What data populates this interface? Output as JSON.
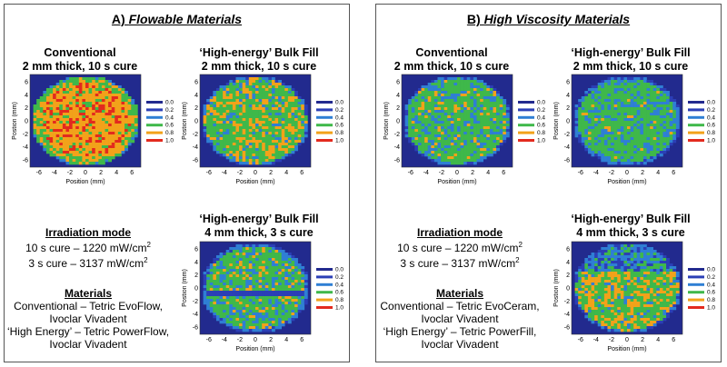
{
  "legend": {
    "labels": [
      "0.0",
      "0.2",
      "0.4",
      "0.6",
      "0.8",
      "1.0"
    ],
    "colors": [
      "#222a8e",
      "#2b3fb6",
      "#2f7fd4",
      "#3fb84a",
      "#f2a21a",
      "#e32a1e"
    ]
  },
  "axes": {
    "xlabel": "Position (mm)",
    "ylabel": "Postion (mm)",
    "ticks": [
      "-6",
      "-4",
      "-2",
      "0",
      "2",
      "4",
      "6"
    ],
    "yticks": [
      "6",
      "4",
      "2",
      "0",
      "-2",
      "-4",
      "-6"
    ]
  },
  "panel_a": {
    "title_prefix": "A) ",
    "title_italic": "Flowable Materials",
    "conventional_title_1": "Conventional",
    "conventional_title_2": "2 mm thick, 10 s cure",
    "bulk2_title_1": "‘High-energy’ Bulk Fill",
    "bulk2_title_2": "2 mm thick, 10 s cure",
    "bulk4_title_1": "‘High-energy’ Bulk Fill",
    "bulk4_title_2": "4 mm thick, 3 s cure",
    "irr_heading": "Irradiation mode",
    "irr_line1": "10 s cure – 1220 mW/cm",
    "irr_line2": "3 s cure – 3137 mW/cm",
    "mat_heading": "Materials",
    "mat_line1": "Conventional – Tetric EvoFlow,",
    "mat_line2": "Ivoclar Vivadent",
    "mat_line3": "‘High Energy’ – Tetric PowerFlow,",
    "mat_line4": "Ivoclar Vivadent"
  },
  "panel_b": {
    "title_prefix": "B) ",
    "title_italic": "High Viscosity Materials",
    "conventional_title_1": "Conventional",
    "conventional_title_2": "2 mm thick, 10 s cure",
    "bulk2_title_1": "‘High-energy’ Bulk Fill",
    "bulk2_title_2": "2 mm thick, 10 s cure",
    "bulk4_title_1": "‘High-energy’ Bulk Fill",
    "bulk4_title_2": "4 mm thick, 3 s cure",
    "irr_heading": "Irradiation mode",
    "irr_line1": "10 s cure – 1220 mW/cm",
    "irr_line2": "3 s cure – 3137 mW/cm",
    "mat_heading": "Materials",
    "mat_line1": "Conventional – Tetric EvoCeram,",
    "mat_line2": "Ivoclar Vivadent",
    "mat_line3": "‘High Energy’ – Tetric PowerFill,",
    "mat_line4": "Ivoclar Vivadent"
  },
  "superscript": "2"
}
